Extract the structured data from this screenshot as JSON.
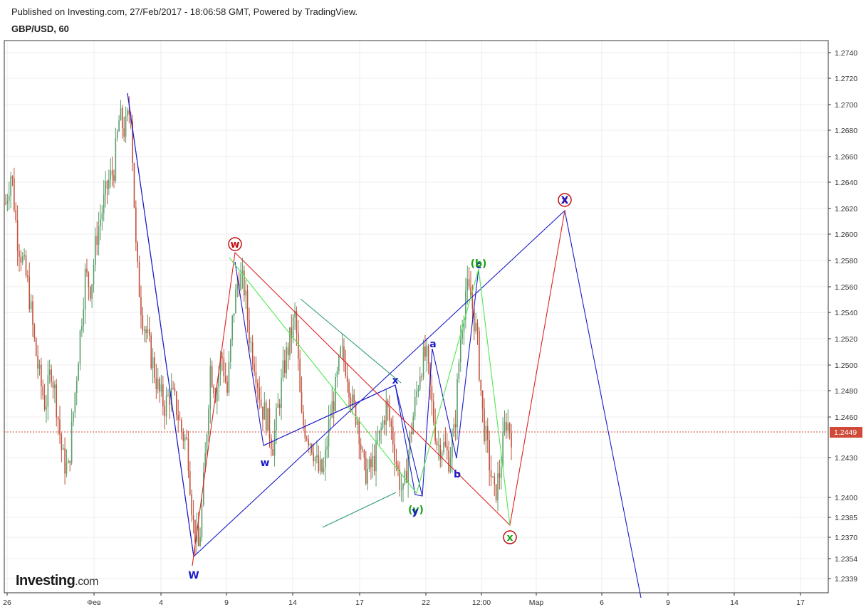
{
  "header": {
    "published": "Published on Investing.com, 27/Feb/2017 - 18:06:58 GMT, Powered by TradingView.",
    "symbol": "GBP/USD, 60"
  },
  "logo": {
    "brand_a": "Investing",
    "brand_b": ".com"
  },
  "colors": {
    "up": "#5a9e6a",
    "down": "#c0513b",
    "blue": "#1b1bc8",
    "red": "#e02020",
    "lime": "#4ee84e",
    "teal": "#2f9a77",
    "grid": "#ececec",
    "price": "#d04a3a"
  },
  "chart_data": {
    "type": "candlestick",
    "y_ticks": [
      "1.2740",
      "1.2720",
      "1.2700",
      "1.2680",
      "1.2660",
      "1.2640",
      "1.2620",
      "1.2600",
      "1.2580",
      "1.2560",
      "1.2540",
      "1.2520",
      "1.2500",
      "1.2480",
      "1.2460",
      "1.2430",
      "1.2400",
      "1.2385",
      "1.2370",
      "1.2354",
      "1.2339"
    ],
    "x_ticks": [
      "26",
      "Фев",
      "4",
      "9",
      "14",
      "17",
      "22",
      "12:00",
      "Мар",
      "6",
      "9",
      "14",
      "17"
    ],
    "last_price": "1.2449",
    "close_series": [
      1.2625,
      1.265,
      1.26,
      1.258,
      1.256,
      1.252,
      1.249,
      1.247,
      1.25,
      1.247,
      1.243,
      1.242,
      1.247,
      1.252,
      1.257,
      1.256,
      1.26,
      1.262,
      1.264,
      1.265,
      1.269,
      1.268,
      1.27,
      1.258,
      1.254,
      1.252,
      1.25,
      1.248,
      1.247,
      1.248,
      1.247,
      1.245,
      1.244,
      1.238,
      1.236,
      1.242,
      1.25,
      1.248,
      1.251,
      1.248,
      1.254,
      1.257,
      1.256,
      1.252,
      1.25,
      1.247,
      1.246,
      1.244,
      1.247,
      1.25,
      1.252,
      1.254,
      1.246,
      1.245,
      1.244,
      1.242,
      1.242,
      1.246,
      1.248,
      1.251,
      1.25,
      1.247,
      1.246,
      1.242,
      1.242,
      1.243,
      1.245,
      1.247,
      1.245,
      1.242,
      1.24,
      1.244,
      1.247,
      1.25,
      1.251,
      1.247,
      1.244,
      1.244,
      1.243,
      1.245,
      1.252,
      1.256,
      1.255,
      1.252,
      1.246,
      1.243,
      1.24,
      1.242,
      1.246,
      1.2449
    ],
    "waves": {
      "blue": [
        [
          179,
          131
        ],
        [
          272,
          782
        ],
        [
          370,
          626
        ],
        [
          555,
          541
        ]
      ],
      "blue2": [
        [
          179,
          131
        ],
        [
          272,
          782
        ],
        [
          793,
          296
        ],
        [
          900,
          840
        ]
      ],
      "blue3": [
        [
          330,
          368
        ],
        [
          370,
          626
        ],
        [
          555,
          541
        ],
        [
          583,
          695
        ],
        [
          593,
          697
        ],
        [
          607,
          490
        ],
        [
          641,
          644
        ],
        [
          672,
          378
        ]
      ],
      "red": [
        [
          270,
          795
        ],
        [
          330,
          355
        ],
        [
          716,
          738
        ],
        [
          793,
          296
        ]
      ],
      "lime": [
        [
          322,
          362
        ],
        [
          585,
          693
        ],
        [
          672,
          378
        ],
        [
          716,
          738
        ]
      ],
      "teal": [
        [
          [
            422,
            420
          ],
          [
            563,
            538
          ]
        ],
        [
          [
            453,
            741
          ],
          [
            556,
            692
          ]
        ]
      ]
    },
    "labels": [
      {
        "text": "w",
        "style": "circle-red",
        "x": 330,
        "y": 343
      },
      {
        "text": "W",
        "style": "blue",
        "x": 272,
        "y": 808
      },
      {
        "text": "w",
        "style": "blue",
        "x": 372,
        "y": 650
      },
      {
        "text": "x",
        "style": "blue",
        "x": 555,
        "y": 534
      },
      {
        "text": "a",
        "style": "blue",
        "x": 608,
        "y": 483
      },
      {
        "text": "b",
        "style": "blue",
        "x": 642,
        "y": 666
      },
      {
        "text": "c",
        "style": "blue",
        "x": 672,
        "y": 372
      },
      {
        "text": "(b)",
        "style": "green",
        "x": 672,
        "y": 370
      },
      {
        "text": "(y)",
        "style": "green",
        "x": 584,
        "y": 716
      },
      {
        "text": "y",
        "style": "blue",
        "x": 583,
        "y": 718
      },
      {
        "text": "x",
        "style": "circle-green",
        "x": 716,
        "y": 755
      },
      {
        "text": "X",
        "style": "circle-red",
        "x": 793,
        "y": 281
      }
    ]
  }
}
